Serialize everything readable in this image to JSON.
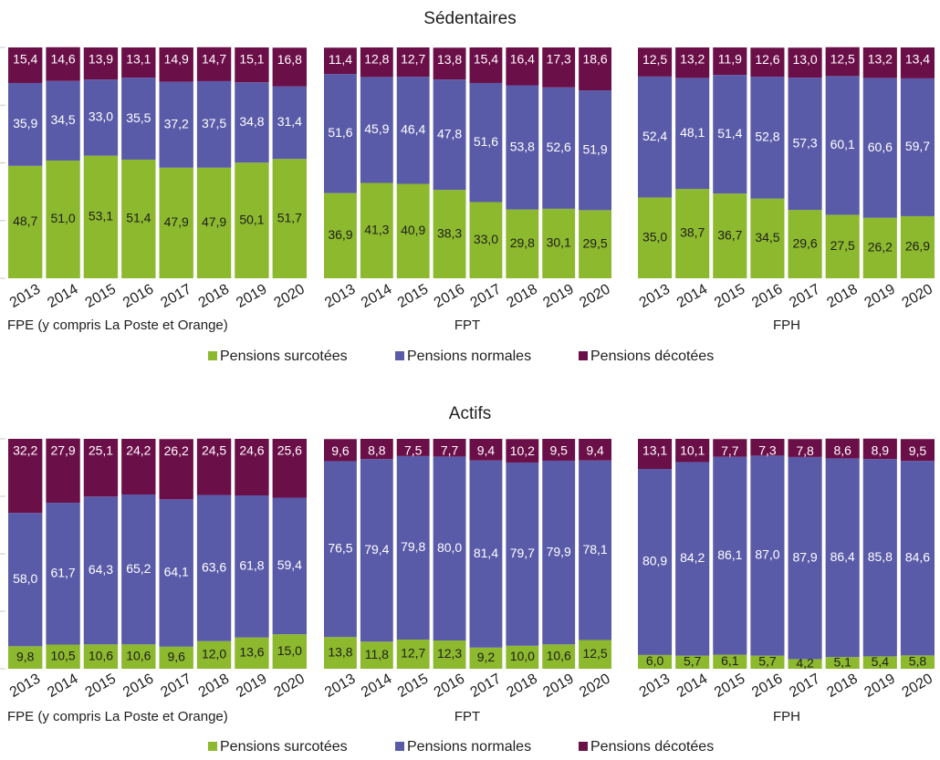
{
  "colors": {
    "surcotees": "#8db92e",
    "normales": "#5a5ba8",
    "decotees": "#6b0f49"
  },
  "legend": [
    "Pensions surcotées",
    "Pensions normales",
    "Pensions décotées"
  ],
  "chart_data": [
    {
      "type": "bar",
      "stacked": true,
      "title": "Sédentaires",
      "legend_position": "bottom",
      "ylim": [
        0,
        100
      ],
      "groups": [
        {
          "name": "FPE (y compris La Poste et Orange)",
          "categories": [
            "2013",
            "2014",
            "2015",
            "2016",
            "2017",
            "2018",
            "2019",
            "2020"
          ],
          "series": [
            {
              "name": "Pensions surcotées",
              "values": [
                48.7,
                51.0,
                53.1,
                51.4,
                47.9,
                47.9,
                50.1,
                51.7
              ],
              "labels": [
                "48,7",
                "51,0",
                "53,1",
                "51,4",
                "47,9",
                "47,9",
                "50,1",
                "51,7"
              ]
            },
            {
              "name": "Pensions normales",
              "values": [
                35.9,
                34.5,
                33.0,
                35.5,
                37.2,
                37.5,
                34.8,
                31.4
              ],
              "labels": [
                "35,9",
                "34,5",
                "33,0",
                "35,5",
                "37,2",
                "37,5",
                "34,8",
                "31,4"
              ]
            },
            {
              "name": "Pensions décotées",
              "values": [
                15.4,
                14.6,
                13.9,
                13.1,
                14.9,
                14.7,
                15.1,
                16.8
              ],
              "labels": [
                "15,4",
                "14,6",
                "13,9",
                "13,1",
                "14,9",
                "14,7",
                "15,1",
                "16,8"
              ]
            }
          ]
        },
        {
          "name": "FPT",
          "categories": [
            "2013",
            "2014",
            "2015",
            "2016",
            "2017",
            "2018",
            "2019",
            "2020"
          ],
          "series": [
            {
              "name": "Pensions surcotées",
              "values": [
                36.9,
                41.3,
                40.9,
                38.3,
                33.0,
                29.8,
                30.1,
                29.5
              ],
              "labels": [
                "36,9",
                "41,3",
                "40,9",
                "38,3",
                "33,0",
                "29,8",
                "30,1",
                "29,5"
              ]
            },
            {
              "name": "Pensions normales",
              "values": [
                51.6,
                45.9,
                46.4,
                47.8,
                51.6,
                53.8,
                52.6,
                51.9
              ],
              "labels": [
                "51,6",
                "45,9",
                "46,4",
                "47,8",
                "51,6",
                "53,8",
                "52,6",
                "51,9"
              ]
            },
            {
              "name": "Pensions décotées",
              "values": [
                11.4,
                12.8,
                12.7,
                13.8,
                15.4,
                16.4,
                17.3,
                18.6
              ],
              "labels": [
                "11,4",
                "12,8",
                "12,7",
                "13,8",
                "15,4",
                "16,4",
                "17,3",
                "18,6"
              ]
            }
          ]
        },
        {
          "name": "FPH",
          "categories": [
            "2013",
            "2014",
            "2015",
            "2016",
            "2017",
            "2018",
            "2019",
            "2020"
          ],
          "series": [
            {
              "name": "Pensions surcotées",
              "values": [
                35.0,
                38.7,
                36.7,
                34.5,
                29.6,
                27.5,
                26.2,
                26.9
              ],
              "labels": [
                "35,0",
                "38,7",
                "36,7",
                "34,5",
                "29,6",
                "27,5",
                "26,2",
                "26,9"
              ]
            },
            {
              "name": "Pensions normales",
              "values": [
                52.4,
                48.1,
                51.4,
                52.8,
                57.3,
                60.1,
                60.6,
                59.7
              ],
              "labels": [
                "52,4",
                "48,1",
                "51,4",
                "52,8",
                "57,3",
                "60,1",
                "60,6",
                "59,7"
              ]
            },
            {
              "name": "Pensions décotées",
              "values": [
                12.5,
                13.2,
                11.9,
                12.6,
                13.0,
                12.5,
                13.2,
                13.4
              ],
              "labels": [
                "12,5",
                "13,2",
                "11,9",
                "12,6",
                "13,0",
                "12,5",
                "13,2",
                "13,4"
              ]
            }
          ]
        }
      ]
    },
    {
      "type": "bar",
      "stacked": true,
      "title": "Actifs",
      "legend_position": "bottom",
      "ylim": [
        0,
        100
      ],
      "groups": [
        {
          "name": "FPE (y compris La Poste et Orange)",
          "categories": [
            "2013",
            "2014",
            "2015",
            "2016",
            "2017",
            "2018",
            "2019",
            "2020"
          ],
          "series": [
            {
              "name": "Pensions surcotées",
              "values": [
                9.8,
                10.5,
                10.6,
                10.6,
                9.6,
                12.0,
                13.6,
                15.0
              ],
              "labels": [
                "9,8",
                "10,5",
                "10,6",
                "10,6",
                "9,6",
                "12,0",
                "13,6",
                "15,0"
              ]
            },
            {
              "name": "Pensions normales",
              "values": [
                58.0,
                61.7,
                64.3,
                65.2,
                64.1,
                63.6,
                61.8,
                59.4
              ],
              "labels": [
                "58,0",
                "61,7",
                "64,3",
                "65,2",
                "64,1",
                "63,6",
                "61,8",
                "59,4"
              ]
            },
            {
              "name": "Pensions décotées",
              "values": [
                32.2,
                27.9,
                25.1,
                24.2,
                26.2,
                24.5,
                24.6,
                25.6
              ],
              "labels": [
                "32,2",
                "27,9",
                "25,1",
                "24,2",
                "26,2",
                "24,5",
                "24,6",
                "25,6"
              ]
            }
          ]
        },
        {
          "name": "FPT",
          "categories": [
            "2013",
            "2014",
            "2015",
            "2016",
            "2017",
            "2018",
            "2019",
            "2020"
          ],
          "series": [
            {
              "name": "Pensions surcotées",
              "values": [
                13.8,
                11.8,
                12.7,
                12.3,
                9.2,
                10.0,
                10.6,
                12.5
              ],
              "labels": [
                "13,8",
                "11,8",
                "12,7",
                "12,3",
                "9,2",
                "10,0",
                "10,6",
                "12,5"
              ]
            },
            {
              "name": "Pensions normales",
              "values": [
                76.5,
                79.4,
                79.8,
                80.0,
                81.4,
                79.7,
                79.9,
                78.1
              ],
              "labels": [
                "76,5",
                "79,4",
                "79,8",
                "80,0",
                "81,4",
                "79,7",
                "79,9",
                "78,1"
              ]
            },
            {
              "name": "Pensions décotées",
              "values": [
                9.6,
                8.8,
                7.5,
                7.7,
                9.4,
                10.2,
                9.5,
                9.4
              ],
              "labels": [
                "9,6",
                "8,8",
                "7,5",
                "7,7",
                "9,4",
                "10,2",
                "9,5",
                "9,4"
              ]
            }
          ]
        },
        {
          "name": "FPH",
          "categories": [
            "2013",
            "2014",
            "2015",
            "2016",
            "2017",
            "2018",
            "2019",
            "2020"
          ],
          "series": [
            {
              "name": "Pensions surcotées",
              "values": [
                6.0,
                5.7,
                6.1,
                5.7,
                4.2,
                5.1,
                5.4,
                5.8
              ],
              "labels": [
                "6,0",
                "5,7",
                "6,1",
                "5,7",
                "4,2",
                "5,1",
                "5,4",
                "5,8"
              ]
            },
            {
              "name": "Pensions normales",
              "values": [
                80.9,
                84.2,
                86.1,
                87.0,
                87.9,
                86.4,
                85.8,
                84.6
              ],
              "labels": [
                "80,9",
                "84,2",
                "86,1",
                "87,0",
                "87,9",
                "86,4",
                "85,8",
                "84,6"
              ]
            },
            {
              "name": "Pensions décotées",
              "values": [
                13.1,
                10.1,
                7.7,
                7.3,
                7.8,
                8.6,
                8.9,
                9.5
              ],
              "labels": [
                "13,1",
                "10,1",
                "7,7",
                "7,3",
                "7,8",
                "8,6",
                "8,9",
                "9,5"
              ]
            }
          ]
        }
      ]
    }
  ]
}
